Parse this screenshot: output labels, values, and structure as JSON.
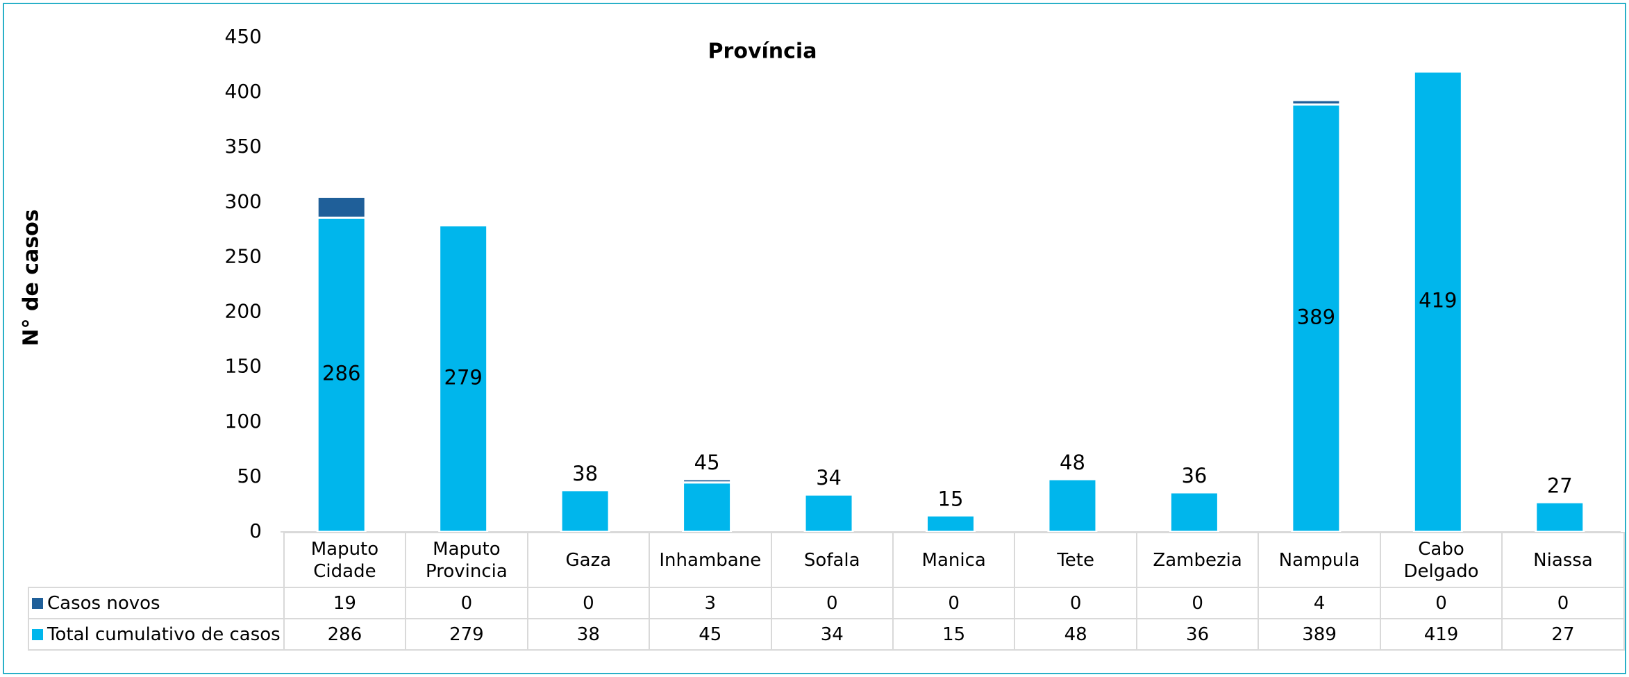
{
  "chart_data": {
    "type": "stacked_bar",
    "title": "Província",
    "y_label": "N° de casos",
    "categories": [
      "Maputo Cidade",
      "Maputo Provincia",
      "Gaza",
      "Inhambane",
      "Sofala",
      "Manica",
      "Tete",
      "Zambezia",
      "Nampula",
      "Cabo Delgado",
      "Niassa"
    ],
    "series": [
      {
        "name": "Casos novos",
        "color": "#1f5f99",
        "values": [
          19,
          0,
          0,
          3,
          0,
          0,
          0,
          0,
          4,
          0,
          0
        ]
      },
      {
        "name": "Total cumulativo de casos",
        "color": "#00b6ec",
        "values": [
          286,
          279,
          38,
          45,
          34,
          15,
          48,
          36,
          389,
          419,
          27
        ]
      }
    ],
    "ylim": [
      0,
      450
    ],
    "yticks": [
      0,
      50,
      100,
      150,
      200,
      250,
      300,
      350,
      400,
      450
    ]
  }
}
